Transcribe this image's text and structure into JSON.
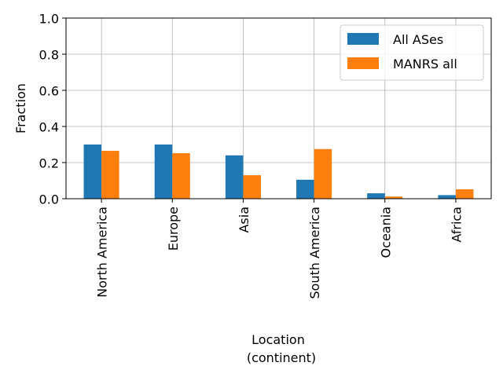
{
  "chart_data": {
    "type": "bar",
    "categories": [
      "North America",
      "Europe",
      "Asia",
      "South America",
      "Oceania",
      "Africa"
    ],
    "series": [
      {
        "name": "All ASes",
        "color": "#1f77b4",
        "values": [
          0.3,
          0.3,
          0.24,
          0.105,
          0.03,
          0.02
        ]
      },
      {
        "name": "MANRS all",
        "color": "#ff7f0e",
        "values": [
          0.265,
          0.252,
          0.13,
          0.275,
          0.012,
          0.052
        ]
      }
    ],
    "title": "",
    "xlabel_lines": [
      "Location",
      "(continent)"
    ],
    "ylabel": "Fraction",
    "ylim": [
      0,
      1.0
    ],
    "yticks": [
      0.0,
      0.2,
      0.4,
      0.6,
      0.8,
      1.0
    ],
    "ytick_labels": [
      "0.0",
      "0.2",
      "0.4",
      "0.6",
      "0.8",
      "1.0"
    ],
    "grid": true,
    "legend_position": "top-right"
  }
}
